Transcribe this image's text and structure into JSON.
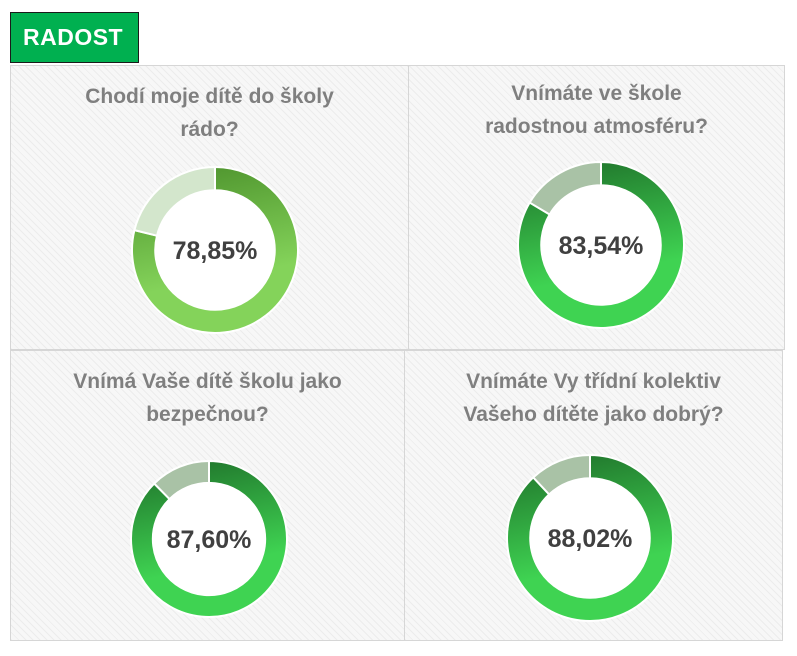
{
  "header": {
    "title": "RADOST"
  },
  "colors": {
    "header_bg": "#00b050",
    "title_text": "#7f7f7f",
    "value_text": "#404040"
  },
  "chart_data": [
    {
      "type": "pie",
      "title_lines": [
        "Chodí moje dítě do školy",
        "rádo?"
      ],
      "value_label": "78,85%",
      "values": [
        78.85,
        21.15
      ],
      "colors": {
        "main_dark": "#4a8f2a",
        "main_light": "#84d35a",
        "rest": "#d3e6cc"
      }
    },
    {
      "type": "pie",
      "title_lines": [
        "Vnímáte ve škole",
        "radostnou atmosféru?"
      ],
      "value_label": "83,54%",
      "values": [
        83.54,
        16.46
      ],
      "colors": {
        "main_dark": "#1e6e29",
        "main_light": "#3fd352",
        "rest": "#a9c2a6"
      }
    },
    {
      "type": "pie",
      "title_lines": [
        "Vnímá Vaše dítě školu jako",
        "bezpečnou?"
      ],
      "value_label": "87,60%",
      "values": [
        87.6,
        12.4
      ],
      "colors": {
        "main_dark": "#1e6e29",
        "main_light": "#3fd352",
        "rest": "#a9c2a6"
      }
    },
    {
      "type": "pie",
      "title_lines": [
        "Vnímáte Vy třídní kolektiv",
        "Vašeho dítěte jako dobrý?"
      ],
      "value_label": "88,02%",
      "values": [
        88.02,
        11.98
      ],
      "colors": {
        "main_dark": "#1e6e29",
        "main_light": "#3fd352",
        "rest": "#a9c2a6"
      }
    }
  ]
}
